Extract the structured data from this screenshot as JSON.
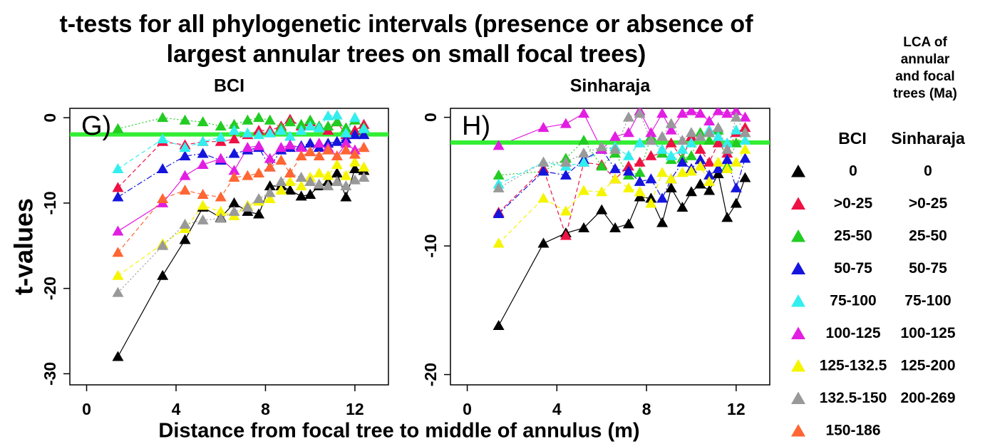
{
  "title": [
    "t-tests for all phylogenetic intervals (presence or absence of",
    "largest annular trees on small focal trees)"
  ],
  "x_label": "Distance from focal tree to middle of annulus (m)",
  "y_label": "t-values",
  "legend_title": [
    "LCA of",
    "annular",
    "and focal",
    "trees (Ma)"
  ],
  "chart_data": [
    {
      "type": "line",
      "title": "BCI",
      "annotation": "G)",
      "x": [
        1.4,
        3.4,
        4.4,
        5.2,
        6.0,
        6.6,
        7.2,
        7.7,
        8.2,
        8.7,
        9.1,
        9.6,
        10.0,
        10.4,
        10.8,
        11.2,
        11.6,
        12.0,
        12.4
      ],
      "xlim": [
        -0.75,
        13.5
      ],
      "xticks": [
        0,
        4,
        8,
        12
      ],
      "ylim": [
        -31.3,
        1.1
      ],
      "yticks": [
        -30,
        -20,
        -10,
        0
      ],
      "reference_line": {
        "value": -1.96,
        "color": "#33ee33"
      },
      "series": [
        {
          "name": "0",
          "color": "#000000",
          "line_style": "solid",
          "values": [
            -28,
            -18.5,
            -14.3,
            -10.5,
            -11.7,
            -10,
            -11,
            -11.3,
            -8,
            -8,
            -8.5,
            -9.2,
            -9,
            -8,
            -7.5,
            -6.5,
            -9.3,
            -6,
            -6.2
          ]
        },
        {
          "name": ">0-25",
          "color": "#ee1144",
          "line_style": "dashed",
          "values": [
            -8.2,
            -2.8,
            -3.2,
            -2.8,
            -2.8,
            -2.5,
            -2,
            -1.5,
            -1.5,
            -1,
            -0.2,
            -1,
            -0.5,
            -1,
            -1.5,
            -0.5,
            -2,
            -1.5,
            -0.8
          ]
        },
        {
          "name": "25-50",
          "color": "#22cc22",
          "line_style": "dotted",
          "values": [
            -1.3,
            0,
            -0.3,
            -0.5,
            -1,
            -0.8,
            -0.3,
            0,
            -0.3,
            -1.2,
            -0.5,
            -0.8,
            -0.3,
            -1,
            -1,
            -0.5,
            -1.2,
            -0.3,
            -1.2
          ]
        },
        {
          "name": "50-75",
          "color": "#1515dd",
          "line_style": "dotdash",
          "values": [
            -9.3,
            -6,
            -4.5,
            -4.2,
            -5,
            -4.2,
            -3.8,
            -3.5,
            -5.8,
            -3.8,
            -3.5,
            -3.3,
            -3,
            -3.5,
            -3,
            -2.8,
            -2.5,
            -2,
            -2
          ]
        },
        {
          "name": "75-100",
          "color": "#33eeee",
          "line_style": "dashed",
          "values": [
            -6,
            -2.5,
            -3.5,
            -2.8,
            -2.3,
            -1.5,
            -1.8,
            -2,
            -1.8,
            -1.5,
            -2.2,
            -1.5,
            -1,
            -1.2,
            0.2,
            0.3,
            -1.8,
            0,
            -1.3
          ]
        },
        {
          "name": "100-125",
          "color": "#e21ee2",
          "line_style": "solid",
          "values": [
            -13.3,
            -10,
            -6.8,
            -5.5,
            -4.8,
            -6.2,
            -3.5,
            -3.3,
            -4.8,
            -3.5,
            -3.2,
            -3.5,
            -4,
            -3,
            -3.5,
            -4.5,
            -3,
            -3.8,
            -3.5
          ]
        },
        {
          "name": "125-132.5",
          "color": "#f5f500",
          "line_style": "dashed",
          "values": [
            -18.5,
            -14.8,
            -13,
            -10.3,
            -11,
            -11.5,
            -10.3,
            -9.8,
            -9.5,
            -8.5,
            -7.5,
            -8,
            -7,
            -6.5,
            -6.8,
            -5.5,
            -6.8,
            -5.2,
            -5.8
          ]
        },
        {
          "name": "132.5-150",
          "color": "#999999",
          "line_style": "dotted",
          "values": [
            -20.5,
            -15,
            -12.5,
            -12,
            -11.8,
            -11,
            -10.5,
            -9.5,
            -8.8,
            -7.5,
            -6.5,
            -7,
            -7.5,
            -7.8,
            -8,
            -7.5,
            -8,
            -7.3,
            -7
          ]
        },
        {
          "name": "150-186",
          "color": "#ff6633",
          "line_style": "dashed",
          "values": [
            -15.8,
            -9.5,
            -8.5,
            -9,
            -9.3,
            -7,
            -6.8,
            -6.5,
            -5.8,
            -5,
            -6.5,
            -4.5,
            -4,
            -4.5,
            -3.8,
            -4.5,
            -3.8,
            -4.3,
            -3.5
          ]
        }
      ]
    },
    {
      "type": "line",
      "title": "Sinharaja",
      "annotation": "H)",
      "x": [
        1.4,
        3.4,
        4.4,
        5.2,
        6.0,
        6.6,
        7.2,
        7.7,
        8.2,
        8.7,
        9.1,
        9.6,
        10.0,
        10.4,
        10.8,
        11.2,
        11.6,
        12.0,
        12.4
      ],
      "xlim": [
        -0.75,
        13.5
      ],
      "xticks": [
        0,
        4,
        8,
        12
      ],
      "ylim": [
        -20.8,
        0.7
      ],
      "yticks": [
        -20,
        -10,
        0
      ],
      "reference_line": {
        "value": -1.96,
        "color": "#33ee33"
      },
      "series": [
        {
          "name": "0",
          "color": "#000000",
          "line_style": "solid",
          "values": [
            -16.2,
            -9.8,
            -9,
            -8.6,
            -7.2,
            -8.6,
            -8.3,
            -6.2,
            -6.3,
            -8.2,
            -5.5,
            -7,
            -5.8,
            -5.2,
            -5.7,
            -4.4,
            -7.8,
            -6.7,
            -4.7
          ]
        },
        {
          "name": ">0-25",
          "color": "#ee1144",
          "line_style": "dashed",
          "values": [
            -7.4,
            -4,
            -9.2,
            -3.5,
            -3.7,
            -4.8,
            -3.8,
            -3.5,
            -3,
            -2.8,
            -2,
            -3.2,
            -1.5,
            -2.5,
            -3.5,
            -2,
            -2.8,
            -1.2,
            -0.8
          ]
        },
        {
          "name": "25-50",
          "color": "#22cc22",
          "line_style": "dotted",
          "values": [
            -4.5,
            -4.2,
            -3.2,
            -1.8,
            -3.8,
            -2.8,
            -4.5,
            -4.3,
            -1.5,
            -2.8,
            -3.3,
            -3.2,
            -3,
            -1.2,
            -1.8,
            -1,
            -3.8,
            -2,
            -1.2
          ]
        },
        {
          "name": "50-75",
          "color": "#1515dd",
          "line_style": "dotdash",
          "values": [
            -7.5,
            -4.2,
            -4.5,
            -3.3,
            -2.5,
            -4,
            -4.2,
            -5,
            -4.8,
            -6.3,
            -4.8,
            -3.5,
            -4,
            -3.3,
            -4.5,
            -4,
            -3.3,
            -5.5,
            -3.2
          ]
        },
        {
          "name": "75-100",
          "color": "#33eeee",
          "line_style": "dashed",
          "values": [
            -5.2,
            -3.5,
            -3.8,
            -3.5,
            -2.5,
            -2.3,
            -3,
            -2,
            -1.8,
            -2.5,
            -3,
            -2.5,
            -2,
            -1.5,
            -1,
            -1.5,
            -2,
            -1,
            -1.8
          ]
        },
        {
          "name": "100-125",
          "color": "#e21ee2",
          "line_style": "solid",
          "values": [
            -2.2,
            -0.8,
            -0.5,
            0.3,
            -2.5,
            -1.5,
            -1.2,
            0.5,
            -1.2,
            0.3,
            -1,
            0.3,
            0.5,
            0.3,
            -0.3,
            0.5,
            0.3,
            0.5,
            0
          ]
        },
        {
          "name": "125-200",
          "color": "#f5f500",
          "line_style": "dashed",
          "values": [
            -9.8,
            -6.3,
            -7.3,
            -5.7,
            -5.8,
            -4.8,
            -5.5,
            -5.8,
            -6.7,
            -4.3,
            -4.8,
            -4.3,
            -4.2,
            -3.8,
            -5,
            -3.5,
            -4,
            -3.5,
            -2.5
          ]
        },
        {
          "name": "200-269",
          "color": "#999999",
          "line_style": "dotted",
          "values": [
            -5.5,
            -3.5,
            -3.5,
            -2.8,
            -2.3,
            -2.5,
            0,
            0.3,
            -1.8,
            -1.5,
            -0.5,
            -1.8,
            -1.2,
            -1.5,
            -1.2,
            -0.8,
            -2.5,
            0,
            -1.2
          ]
        }
      ]
    }
  ]
}
